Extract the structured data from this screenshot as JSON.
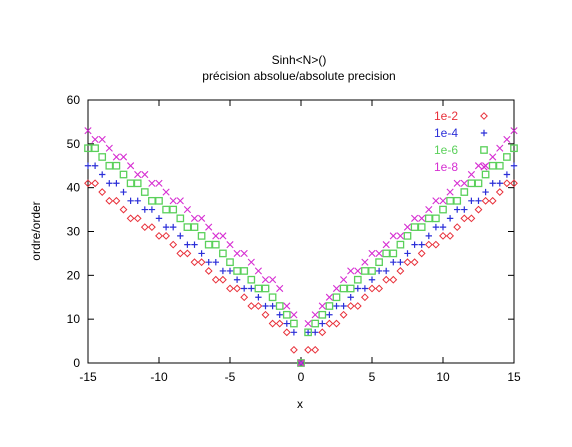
{
  "chart_data": {
    "type": "scatter",
    "title": "Sinh<N>()",
    "subtitle": "précision absolue/absolute precision",
    "xlabel": "x",
    "ylabel": "ordre/order",
    "xlim": [
      -15,
      15
    ],
    "ylim": [
      0,
      60
    ],
    "xticks": [
      "-15",
      "-10",
      "-5",
      "0",
      "5",
      "10",
      "15"
    ],
    "yticks": [
      "0",
      "10",
      "20",
      "30",
      "40",
      "50",
      "60"
    ],
    "legend_position": "top-right",
    "grid": false,
    "series": [
      {
        "name": "1e-2",
        "color": "#e8303a",
        "marker": "diamond",
        "points": [
          [
            -15,
            41
          ],
          [
            -14.5,
            41
          ],
          [
            -14,
            39
          ],
          [
            -13.5,
            37
          ],
          [
            -13,
            37
          ],
          [
            -12.5,
            35
          ],
          [
            -12,
            33
          ],
          [
            -11.5,
            33
          ],
          [
            -11,
            31
          ],
          [
            -10.5,
            31
          ],
          [
            -10,
            29
          ],
          [
            -9.5,
            29
          ],
          [
            -9,
            27
          ],
          [
            -8.5,
            25
          ],
          [
            -8,
            25
          ],
          [
            -7.5,
            23
          ],
          [
            -7,
            23
          ],
          [
            -6.5,
            21
          ],
          [
            -6,
            19
          ],
          [
            -5.5,
            19
          ],
          [
            -5,
            17
          ],
          [
            -4.5,
            17
          ],
          [
            -4,
            15
          ],
          [
            -3.5,
            13
          ],
          [
            -3,
            13
          ],
          [
            -2.5,
            11
          ],
          [
            -2,
            9
          ],
          [
            -1.5,
            9
          ],
          [
            -1,
            7
          ],
          [
            -0.5,
            3
          ],
          [
            0,
            0
          ],
          [
            0.5,
            3
          ],
          [
            1,
            3
          ],
          [
            1.5,
            7
          ],
          [
            2,
            9
          ],
          [
            2.5,
            9
          ],
          [
            3,
            11
          ],
          [
            3.5,
            13
          ],
          [
            4,
            13
          ],
          [
            4.5,
            15
          ],
          [
            5,
            17
          ],
          [
            5.5,
            17
          ],
          [
            6,
            19
          ],
          [
            6.5,
            19
          ],
          [
            7,
            21
          ],
          [
            7.5,
            23
          ],
          [
            8,
            23
          ],
          [
            8.5,
            25
          ],
          [
            9,
            27
          ],
          [
            9.5,
            27
          ],
          [
            10,
            29
          ],
          [
            10.5,
            29
          ],
          [
            11,
            31
          ],
          [
            11.5,
            33
          ],
          [
            12,
            33
          ],
          [
            12.5,
            35
          ],
          [
            13,
            37
          ],
          [
            13.5,
            37
          ],
          [
            14,
            39
          ],
          [
            14.5,
            41
          ],
          [
            15,
            41
          ]
        ]
      },
      {
        "name": "1e-4",
        "color": "#2b2fd8",
        "marker": "plus",
        "points": [
          [
            -15,
            45
          ],
          [
            -14.5,
            45
          ],
          [
            -14,
            43
          ],
          [
            -13.5,
            41
          ],
          [
            -13,
            41
          ],
          [
            -12.5,
            39
          ],
          [
            -12,
            37
          ],
          [
            -11.5,
            37
          ],
          [
            -11,
            35
          ],
          [
            -10.5,
            35
          ],
          [
            -10,
            33
          ],
          [
            -9.5,
            31
          ],
          [
            -9,
            31
          ],
          [
            -8.5,
            29
          ],
          [
            -8,
            27
          ],
          [
            -7.5,
            27
          ],
          [
            -7,
            25
          ],
          [
            -6.5,
            23
          ],
          [
            -6,
            23
          ],
          [
            -5.5,
            21
          ],
          [
            -5,
            21
          ],
          [
            -4.5,
            19
          ],
          [
            -4,
            17
          ],
          [
            -3.5,
            17
          ],
          [
            -3,
            15
          ],
          [
            -2.5,
            13
          ],
          [
            -2,
            13
          ],
          [
            -1.5,
            11
          ],
          [
            -1,
            9
          ],
          [
            -0.5,
            7
          ],
          [
            0,
            0
          ],
          [
            0.5,
            7
          ],
          [
            1,
            7
          ],
          [
            1.5,
            9
          ],
          [
            2,
            11
          ],
          [
            2.5,
            13
          ],
          [
            3,
            13
          ],
          [
            3.5,
            15
          ],
          [
            4,
            17
          ],
          [
            4.5,
            17
          ],
          [
            5,
            19
          ],
          [
            5.5,
            21
          ],
          [
            6,
            21
          ],
          [
            6.5,
            23
          ],
          [
            7,
            23
          ],
          [
            7.5,
            25
          ],
          [
            8,
            27
          ],
          [
            8.5,
            27
          ],
          [
            9,
            29
          ],
          [
            9.5,
            31
          ],
          [
            10,
            31
          ],
          [
            10.5,
            33
          ],
          [
            11,
            35
          ],
          [
            11.5,
            35
          ],
          [
            12,
            37
          ],
          [
            12.5,
            37
          ],
          [
            13,
            39
          ],
          [
            13.5,
            41
          ],
          [
            14,
            41
          ],
          [
            14.5,
            43
          ],
          [
            15,
            45
          ]
        ]
      },
      {
        "name": "1e-6",
        "color": "#5ad05a",
        "marker": "square",
        "points": [
          [
            -15,
            49
          ],
          [
            -14.5,
            49
          ],
          [
            -14,
            47
          ],
          [
            -13.5,
            45
          ],
          [
            -13,
            45
          ],
          [
            -12.5,
            43
          ],
          [
            -12,
            41
          ],
          [
            -11.5,
            41
          ],
          [
            -11,
            39
          ],
          [
            -10.5,
            37
          ],
          [
            -10,
            37
          ],
          [
            -9.5,
            35
          ],
          [
            -9,
            35
          ],
          [
            -8.5,
            33
          ],
          [
            -8,
            31
          ],
          [
            -7.5,
            31
          ],
          [
            -7,
            29
          ],
          [
            -6.5,
            27
          ],
          [
            -6,
            27
          ],
          [
            -5.5,
            25
          ],
          [
            -5,
            23
          ],
          [
            -4.5,
            21
          ],
          [
            -4,
            21
          ],
          [
            -3.5,
            19
          ],
          [
            -3,
            17
          ],
          [
            -2.5,
            17
          ],
          [
            -2,
            15
          ],
          [
            -1.5,
            13
          ],
          [
            -1,
            11
          ],
          [
            -0.5,
            9
          ],
          [
            0,
            0
          ],
          [
            0.5,
            7
          ],
          [
            1,
            9
          ],
          [
            1.5,
            11
          ],
          [
            2,
            13
          ],
          [
            2.5,
            15
          ],
          [
            3,
            17
          ],
          [
            3.5,
            17
          ],
          [
            4,
            19
          ],
          [
            4.5,
            21
          ],
          [
            5,
            21
          ],
          [
            5.5,
            23
          ],
          [
            6,
            25
          ],
          [
            6.5,
            25
          ],
          [
            7,
            27
          ],
          [
            7.5,
            29
          ],
          [
            8,
            31
          ],
          [
            8.5,
            31
          ],
          [
            9,
            33
          ],
          [
            9.5,
            33
          ],
          [
            10,
            35
          ],
          [
            10.5,
            37
          ],
          [
            11,
            37
          ],
          [
            11.5,
            39
          ],
          [
            12,
            41
          ],
          [
            12.5,
            41
          ],
          [
            13,
            43
          ],
          [
            13.5,
            45
          ],
          [
            14,
            45
          ],
          [
            14.5,
            47
          ],
          [
            15,
            49
          ]
        ]
      },
      {
        "name": "1e-8",
        "color": "#d62fd2",
        "marker": "cross",
        "points": [
          [
            -15,
            53
          ],
          [
            -14.5,
            51
          ],
          [
            -14,
            51
          ],
          [
            -13.5,
            49
          ],
          [
            -13,
            47
          ],
          [
            -12.5,
            47
          ],
          [
            -12,
            45
          ],
          [
            -11.5,
            43
          ],
          [
            -11,
            43
          ],
          [
            -10.5,
            41
          ],
          [
            -10,
            41
          ],
          [
            -9.5,
            39
          ],
          [
            -9,
            37
          ],
          [
            -8.5,
            37
          ],
          [
            -8,
            35
          ],
          [
            -7.5,
            33
          ],
          [
            -7,
            33
          ],
          [
            -6.5,
            31
          ],
          [
            -6,
            29
          ],
          [
            -5.5,
            29
          ],
          [
            -5,
            27
          ],
          [
            -4.5,
            25
          ],
          [
            -4,
            25
          ],
          [
            -3.5,
            23
          ],
          [
            -3,
            21
          ],
          [
            -2.5,
            19
          ],
          [
            -2,
            19
          ],
          [
            -1.5,
            17
          ],
          [
            -1,
            13
          ],
          [
            -0.5,
            11
          ],
          [
            0,
            0
          ],
          [
            0.5,
            9
          ],
          [
            1,
            11
          ],
          [
            1.5,
            13
          ],
          [
            2,
            15
          ],
          [
            2.5,
            17
          ],
          [
            3,
            19
          ],
          [
            3.5,
            21
          ],
          [
            4,
            21
          ],
          [
            4.5,
            23
          ],
          [
            5,
            25
          ],
          [
            5.5,
            25
          ],
          [
            6,
            27
          ],
          [
            6.5,
            29
          ],
          [
            7,
            29
          ],
          [
            7.5,
            31
          ],
          [
            8,
            33
          ],
          [
            8.5,
            33
          ],
          [
            9,
            35
          ],
          [
            9.5,
            37
          ],
          [
            10,
            37
          ],
          [
            10.5,
            39
          ],
          [
            11,
            41
          ],
          [
            11.5,
            41
          ],
          [
            12,
            43
          ],
          [
            12.5,
            45
          ],
          [
            13,
            45
          ],
          [
            13.5,
            47
          ],
          [
            14,
            49
          ],
          [
            14.5,
            51
          ],
          [
            15,
            53
          ]
        ]
      }
    ]
  }
}
